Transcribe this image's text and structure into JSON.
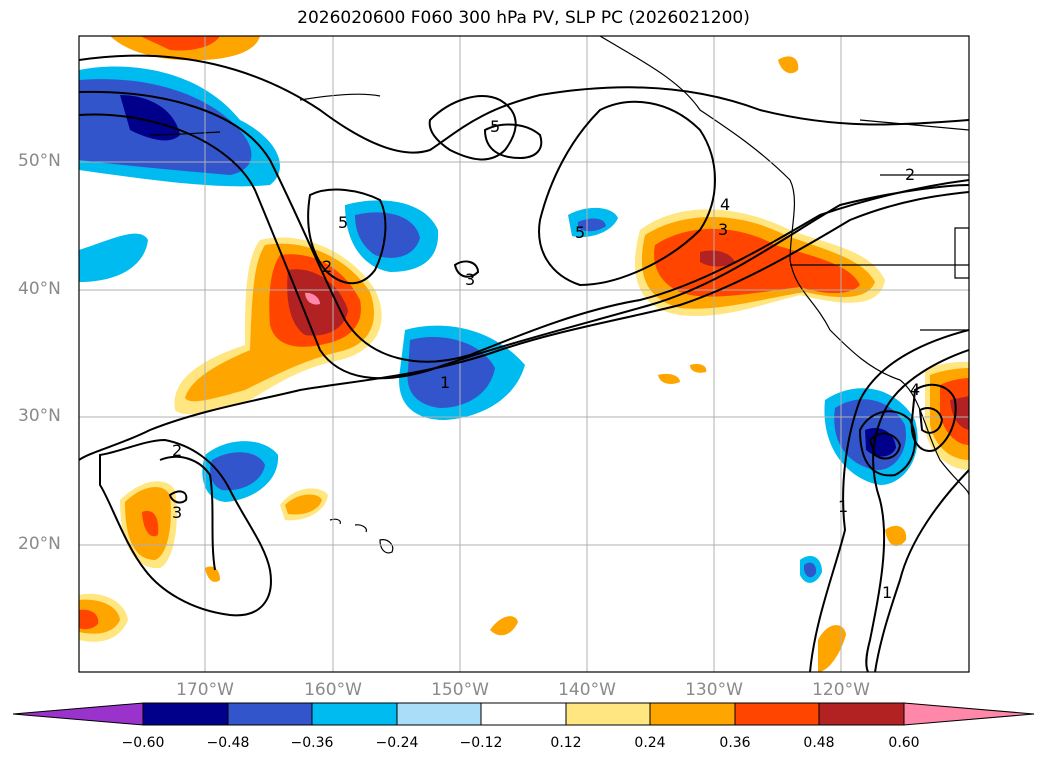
{
  "title": "2026020600 F060 300 hPa PV, SLP PC (2026021200)",
  "axes": {
    "lat_labels": [
      "50°N",
      "40°N",
      "30°N",
      "20°N"
    ],
    "lon_labels": [
      "170°W",
      "160°W",
      "150°W",
      "140°W",
      "130°W",
      "120°W"
    ]
  },
  "colorbar": {
    "ticks": [
      "−0.60",
      "−0.48",
      "−0.36",
      "−0.24",
      "−0.12",
      "0.12",
      "0.24",
      "0.36",
      "0.48",
      "0.60"
    ],
    "colors": [
      "#9933cc",
      "#00008b",
      "#3355cc",
      "#00bbf0",
      "#aaddf7",
      "#ffffff",
      "#ffe680",
      "#ffa500",
      "#ff4500",
      "#b22222",
      "#ff88aa"
    ]
  },
  "contour_labels": [
    "5",
    "5",
    "5",
    "3",
    "4",
    "3",
    "2",
    "1",
    "2",
    "3",
    "1",
    "1",
    "2",
    "4"
  ],
  "colors": {
    "grid": "#b0b0b0",
    "contour": "#000000",
    "label": "#8a8a8a"
  }
}
